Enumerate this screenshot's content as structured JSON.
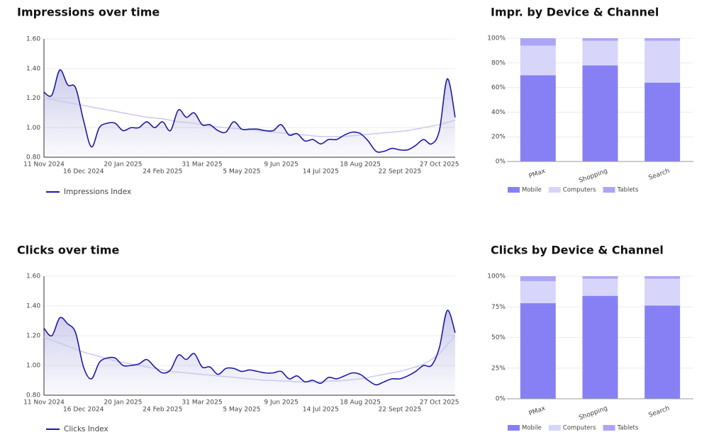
{
  "chart_data": [
    {
      "type": "line",
      "title": "Impressions over time",
      "categories": [
        "11 Nov 2024",
        null,
        null,
        null,
        null,
        "16 Dec 2024",
        null,
        null,
        null,
        null,
        "20 Jan 2025",
        null,
        null,
        null,
        null,
        "24 Feb 2025",
        null,
        null,
        null,
        null,
        "31 Mar 2025",
        null,
        null,
        null,
        null,
        "5 May 2025",
        null,
        null,
        null,
        null,
        "9 Jun 2025",
        null,
        null,
        null,
        null,
        "14 Jul 2025",
        null,
        null,
        null,
        null,
        "18 Aug 2025",
        null,
        null,
        null,
        null,
        "22 Sept 2025",
        null,
        null,
        null,
        null,
        "27 Oct 2025",
        null,
        null
      ],
      "series": [
        {
          "name": "Impressions Index",
          "color": "#1c1aa6",
          "values": [
            1.24,
            1.22,
            1.39,
            1.29,
            1.27,
            1.05,
            0.87,
            1.0,
            1.03,
            1.03,
            0.98,
            1.0,
            1.0,
            1.04,
            1.0,
            1.04,
            0.98,
            1.12,
            1.07,
            1.1,
            1.02,
            1.02,
            0.98,
            0.97,
            1.04,
            0.99,
            0.99,
            0.99,
            0.98,
            0.98,
            1.02,
            0.95,
            0.96,
            0.91,
            0.92,
            0.89,
            0.92,
            0.92,
            0.95,
            0.97,
            0.96,
            0.91,
            0.84,
            0.84,
            0.86,
            0.85,
            0.85,
            0.88,
            0.92,
            0.89,
            0.98,
            1.33,
            1.07
          ]
        }
      ],
      "trend": {
        "color": "#cbc8ee",
        "values": [
          1.2,
          1.19,
          1.18,
          1.17,
          1.16,
          1.15,
          1.14,
          1.13,
          1.12,
          1.11,
          1.1,
          1.09,
          1.08,
          1.07,
          1.065,
          1.06,
          1.05,
          1.04,
          1.035,
          1.03,
          1.02,
          1.01,
          1.005,
          1.0,
          0.995,
          0.99,
          0.985,
          0.98,
          0.975,
          0.97,
          0.965,
          0.96,
          0.955,
          0.95,
          0.945,
          0.94,
          0.94,
          0.94,
          0.94,
          0.945,
          0.95,
          0.955,
          0.96,
          0.965,
          0.97,
          0.975,
          0.98,
          0.99,
          1.0,
          1.01,
          1.02,
          1.035,
          1.05
        ]
      },
      "ylim": [
        0.8,
        1.6
      ],
      "yticks": [
        {
          "value": 0.8,
          "label": "0.80"
        },
        {
          "value": 1.0,
          "label": "1.00"
        },
        {
          "value": 1.2,
          "label": "1.20"
        },
        {
          "value": 1.4,
          "label": "1.40"
        },
        {
          "value": 1.6,
          "label": "1.60"
        }
      ],
      "grid": true
    },
    {
      "type": "bar",
      "stacked": true,
      "title": "Impr. by Device & Channel",
      "categories": [
        "PMax",
        "Shopping",
        "Search"
      ],
      "series": [
        {
          "name": "Mobile",
          "color": "#8680f4",
          "values": [
            70,
            78,
            64
          ]
        },
        {
          "name": "Computers",
          "color": "#d7d5fa",
          "values": [
            24,
            20,
            34
          ]
        },
        {
          "name": "Tablets",
          "color": "#aba5f5",
          "values": [
            6,
            2,
            2
          ]
        }
      ],
      "ylim": [
        0,
        100
      ],
      "yticks": [
        {
          "value": 0,
          "label": "0%"
        },
        {
          "value": 20,
          "label": "20%"
        },
        {
          "value": 40,
          "label": "40%"
        },
        {
          "value": 60,
          "label": "60%"
        },
        {
          "value": 80,
          "label": "80%"
        },
        {
          "value": 100,
          "label": "100%"
        }
      ],
      "grid": true
    },
    {
      "type": "line",
      "title": "Clicks over time",
      "categories": [
        "11 Nov 2024",
        null,
        null,
        null,
        null,
        "16 Dec 2024",
        null,
        null,
        null,
        null,
        "20 Jan 2025",
        null,
        null,
        null,
        null,
        "24 Feb 2025",
        null,
        null,
        null,
        null,
        "31 Mar 2025",
        null,
        null,
        null,
        null,
        "5 May 2025",
        null,
        null,
        null,
        null,
        "9 Jun 2025",
        null,
        null,
        null,
        null,
        "14 Jul 2025",
        null,
        null,
        null,
        null,
        "18 Aug 2025",
        null,
        null,
        null,
        null,
        "22 Sept 2025",
        null,
        null,
        null,
        null,
        "27 Oct 2025",
        null,
        null
      ],
      "series": [
        {
          "name": "Clicks Index",
          "color": "#1c1aa6",
          "values": [
            1.25,
            1.2,
            1.32,
            1.28,
            1.22,
            0.99,
            0.91,
            1.02,
            1.05,
            1.05,
            1.0,
            1.0,
            1.01,
            1.04,
            0.99,
            0.95,
            0.97,
            1.07,
            1.04,
            1.08,
            0.99,
            0.99,
            0.94,
            0.98,
            0.98,
            0.96,
            0.97,
            0.96,
            0.95,
            0.95,
            0.96,
            0.91,
            0.93,
            0.89,
            0.9,
            0.88,
            0.92,
            0.91,
            0.93,
            0.95,
            0.94,
            0.9,
            0.87,
            0.89,
            0.91,
            0.91,
            0.93,
            0.96,
            1.0,
            1.0,
            1.12,
            1.37,
            1.22
          ]
        }
      ],
      "trend": {
        "color": "#cbc8ee",
        "values": [
          1.19,
          1.17,
          1.15,
          1.13,
          1.11,
          1.09,
          1.075,
          1.06,
          1.045,
          1.03,
          1.02,
          1.01,
          1.0,
          0.99,
          0.98,
          0.97,
          0.96,
          0.955,
          0.95,
          0.945,
          0.94,
          0.935,
          0.93,
          0.925,
          0.92,
          0.915,
          0.91,
          0.905,
          0.9,
          0.9,
          0.895,
          0.895,
          0.89,
          0.89,
          0.89,
          0.89,
          0.895,
          0.895,
          0.9,
          0.905,
          0.91,
          0.92,
          0.93,
          0.94,
          0.95,
          0.96,
          0.975,
          0.99,
          1.01,
          1.04,
          1.08,
          1.14,
          1.2
        ]
      },
      "ylim": [
        0.8,
        1.6
      ],
      "yticks": [
        {
          "value": 0.8,
          "label": "0.80"
        },
        {
          "value": 1.0,
          "label": "1.00"
        },
        {
          "value": 1.2,
          "label": "1.20"
        },
        {
          "value": 1.4,
          "label": "1.40"
        },
        {
          "value": 1.6,
          "label": "1.60"
        }
      ],
      "grid": true
    },
    {
      "type": "bar",
      "stacked": true,
      "title": "Clicks by Device & Channel",
      "categories": [
        "PMax",
        "Shopping",
        "Search"
      ],
      "series": [
        {
          "name": "Mobile",
          "color": "#8680f4",
          "values": [
            78,
            84,
            76
          ]
        },
        {
          "name": "Computers",
          "color": "#d7d5fa",
          "values": [
            18,
            14,
            22
          ]
        },
        {
          "name": "Tablets",
          "color": "#aba5f5",
          "values": [
            4,
            2,
            2
          ]
        }
      ],
      "ylim": [
        0,
        100
      ],
      "yticks": [
        {
          "value": 0,
          "label": "0%"
        },
        {
          "value": 25,
          "label": "25%"
        },
        {
          "value": 50,
          "label": "50%"
        },
        {
          "value": 75,
          "label": "75%"
        },
        {
          "value": 100,
          "label": "100%"
        }
      ],
      "grid": true
    }
  ]
}
